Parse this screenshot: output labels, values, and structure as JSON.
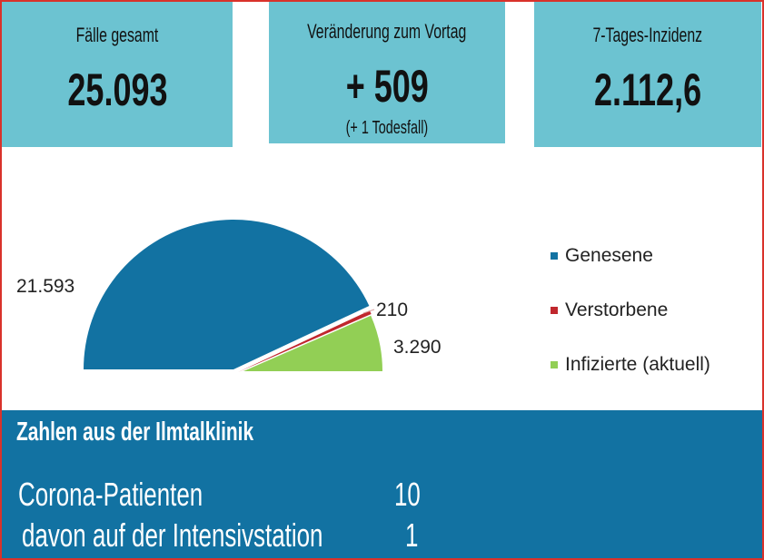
{
  "kpis": [
    {
      "label": "Fälle gesamt",
      "value": "25.093"
    },
    {
      "label": "Veränderung zum Vortag",
      "value": "+ 509",
      "note": "(+ 1 Todesfall)"
    },
    {
      "label": "7-Tages-Inzidenz",
      "value": "2.112,6"
    }
  ],
  "chart_data": {
    "type": "pie",
    "subtype": "half-pie",
    "categories": [
      "Genesene",
      "Verstorbene",
      "Infizierte (aktuell)"
    ],
    "values": [
      21593,
      210,
      3290
    ],
    "data_labels": [
      "21.593",
      "210",
      "3.290"
    ],
    "colors": [
      "#1272a2",
      "#c0272d",
      "#92cf55"
    ],
    "legend_position": "right"
  },
  "clinic": {
    "title": "Zahlen aus der Ilmtalklinik",
    "rows": [
      {
        "label": "Corona-Patienten",
        "value": "10"
      },
      {
        "label": "davon auf der Intensivstation",
        "value": "1"
      }
    ]
  }
}
